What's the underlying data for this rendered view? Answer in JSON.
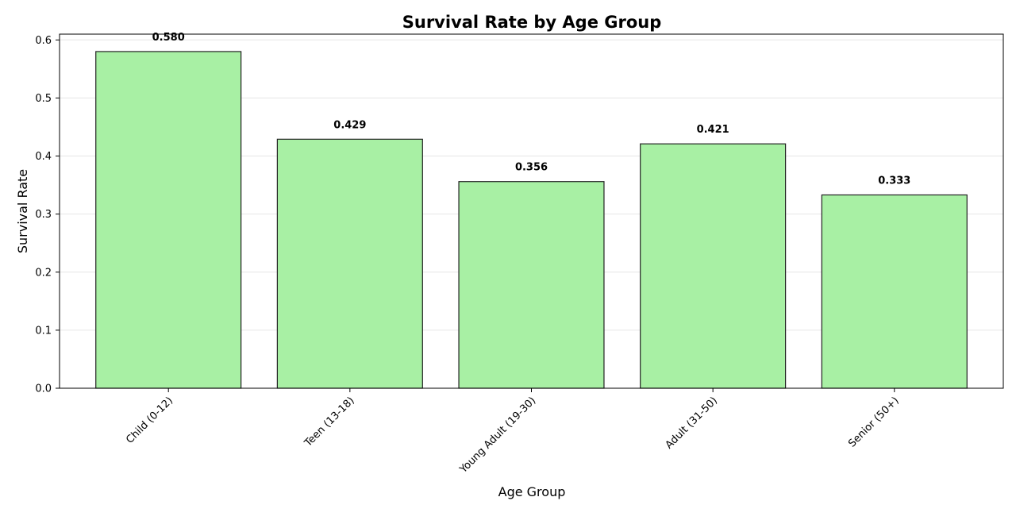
{
  "chart_data": {
    "type": "bar",
    "title": "Survival Rate by Age Group",
    "xlabel": "Age Group",
    "ylabel": "Survival Rate",
    "categories": [
      "Child (0-12)",
      "Teen (13-18)",
      "Young Adult (19-30)",
      "Adult (31-50)",
      "Senior (50+)"
    ],
    "values": [
      0.58,
      0.429,
      0.356,
      0.421,
      0.333
    ],
    "value_labels": [
      "0.580",
      "0.429",
      "0.356",
      "0.421",
      "0.333"
    ],
    "ylim": [
      0,
      0.61
    ],
    "yticks": [
      0.0,
      0.1,
      0.2,
      0.3,
      0.4,
      0.5,
      0.6
    ],
    "ytick_labels": [
      "0.0",
      "0.1",
      "0.2",
      "0.3",
      "0.4",
      "0.5",
      "0.6"
    ],
    "grid": "y",
    "colors": {
      "bar_fill": "#a8f0a4",
      "bar_edge": "#222222",
      "grid": "#e6e6e6",
      "axis": "#000000"
    }
  }
}
